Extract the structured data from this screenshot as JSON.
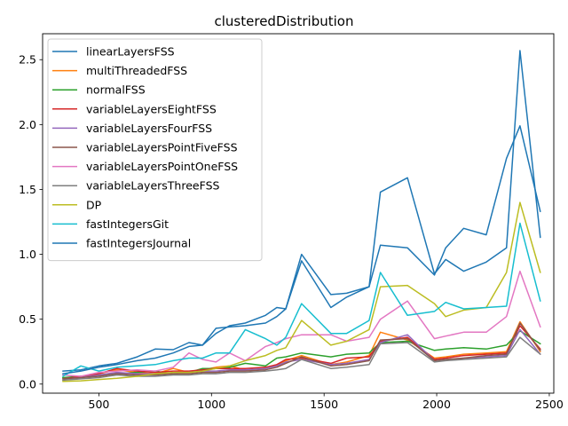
{
  "chart_data": {
    "type": "line",
    "title": "clusteredDistribution",
    "xlabel": "",
    "ylabel": "",
    "xlim": [
      250,
      2520
    ],
    "ylim": [
      -0.07,
      2.7
    ],
    "xticks": [
      500,
      1000,
      1500,
      2000,
      2500
    ],
    "xtick_labels": [
      "500",
      "1000",
      "1500",
      "2000",
      "2500"
    ],
    "yticks": [
      0.0,
      0.5,
      1.0,
      1.5,
      2.0,
      2.5
    ],
    "ytick_labels": [
      "0.0",
      "0.5",
      "1.0",
      "1.5",
      "2.0",
      "2.5"
    ],
    "grid": false,
    "legend": "upper-left",
    "x": [
      340,
      420,
      500,
      580,
      670,
      750,
      830,
      900,
      960,
      1020,
      1080,
      1150,
      1240,
      1290,
      1330,
      1400,
      1530,
      1600,
      1700,
      1750,
      1870,
      1990,
      2040,
      2120,
      2220,
      2310,
      2370,
      2460
    ],
    "series": [
      {
        "name": "linearLayersFSS",
        "color": "#1f77b4",
        "values": [
          0.1,
          0.11,
          0.14,
          0.16,
          0.21,
          0.27,
          0.265,
          0.32,
          0.3,
          0.43,
          0.44,
          0.45,
          0.47,
          0.52,
          0.58,
          1.0,
          0.69,
          0.7,
          0.75,
          1.48,
          1.59,
          0.85,
          0.96,
          0.87,
          0.94,
          1.05,
          2.57,
          1.13
        ]
      },
      {
        "name": "multiThreadedFSS",
        "color": "#ff7f0e",
        "values": [
          0.05,
          0.055,
          0.08,
          0.11,
          0.09,
          0.08,
          0.12,
          0.09,
          0.11,
          0.13,
          0.14,
          0.11,
          0.12,
          0.15,
          0.18,
          0.22,
          0.15,
          0.17,
          0.22,
          0.4,
          0.34,
          0.2,
          0.21,
          0.23,
          0.24,
          0.25,
          0.48,
          0.25
        ]
      },
      {
        "name": "normalFSS",
        "color": "#2ca02c",
        "values": [
          0.05,
          0.06,
          0.065,
          0.08,
          0.09,
          0.1,
          0.075,
          0.09,
          0.12,
          0.12,
          0.13,
          0.16,
          0.14,
          0.2,
          0.21,
          0.24,
          0.21,
          0.23,
          0.24,
          0.32,
          0.33,
          0.26,
          0.27,
          0.28,
          0.27,
          0.3,
          0.41,
          0.31
        ]
      },
      {
        "name": "variableLayersEightFSS",
        "color": "#d62728",
        "values": [
          0.04,
          0.06,
          0.08,
          0.12,
          0.1,
          0.09,
          0.1,
          0.1,
          0.11,
          0.12,
          0.12,
          0.12,
          0.13,
          0.15,
          0.19,
          0.2,
          0.16,
          0.2,
          0.21,
          0.33,
          0.36,
          0.19,
          0.2,
          0.22,
          0.23,
          0.24,
          0.45,
          0.27
        ]
      },
      {
        "name": "variableLayersFourFSS",
        "color": "#9467bd",
        "values": [
          0.04,
          0.05,
          0.07,
          0.09,
          0.08,
          0.08,
          0.08,
          0.09,
          0.1,
          0.1,
          0.11,
          0.11,
          0.12,
          0.14,
          0.17,
          0.19,
          0.15,
          0.16,
          0.19,
          0.32,
          0.38,
          0.18,
          0.19,
          0.2,
          0.21,
          0.22,
          0.42,
          0.23
        ]
      },
      {
        "name": "variableLayersPointFiveFSS",
        "color": "#8c564b",
        "values": [
          0.04,
          0.05,
          0.06,
          0.08,
          0.07,
          0.07,
          0.08,
          0.08,
          0.09,
          0.09,
          0.1,
          0.1,
          0.11,
          0.13,
          0.16,
          0.21,
          0.14,
          0.15,
          0.18,
          0.34,
          0.35,
          0.18,
          0.19,
          0.2,
          0.22,
          0.23,
          0.47,
          0.26
        ]
      },
      {
        "name": "variableLayersPointOneFSS",
        "color": "#e377c2",
        "values": [
          0.07,
          0.06,
          0.09,
          0.1,
          0.11,
          0.1,
          0.13,
          0.24,
          0.19,
          0.17,
          0.24,
          0.18,
          0.29,
          0.32,
          0.35,
          0.38,
          0.38,
          0.33,
          0.36,
          0.5,
          0.64,
          0.35,
          0.37,
          0.4,
          0.4,
          0.52,
          0.87,
          0.44
        ]
      },
      {
        "name": "variableLayersThreeFSS",
        "color": "#7f7f7f",
        "values": [
          0.03,
          0.04,
          0.05,
          0.07,
          0.06,
          0.06,
          0.07,
          0.07,
          0.08,
          0.08,
          0.09,
          0.09,
          0.1,
          0.11,
          0.12,
          0.19,
          0.12,
          0.13,
          0.15,
          0.31,
          0.32,
          0.17,
          0.18,
          0.19,
          0.2,
          0.21,
          0.36,
          0.23
        ]
      },
      {
        "name": "DP",
        "color": "#bcbd22",
        "values": [
          0.02,
          0.025,
          0.035,
          0.045,
          0.06,
          0.08,
          0.09,
          0.09,
          0.1,
          0.12,
          0.14,
          0.18,
          0.22,
          0.26,
          0.28,
          0.49,
          0.3,
          0.33,
          0.42,
          0.75,
          0.76,
          0.62,
          0.52,
          0.57,
          0.59,
          0.86,
          1.4,
          0.86
        ]
      },
      {
        "name": "fastIntegersGit",
        "color": "#17becf",
        "values": [
          0.06,
          0.14,
          0.1,
          0.13,
          0.14,
          0.15,
          0.18,
          0.2,
          0.2,
          0.24,
          0.24,
          0.42,
          0.35,
          0.3,
          0.36,
          0.62,
          0.39,
          0.39,
          0.49,
          0.86,
          0.53,
          0.56,
          0.63,
          0.58,
          0.59,
          0.6,
          1.24,
          0.64
        ]
      },
      {
        "name": "fastIntegersJournal",
        "color": "#1f77b4",
        "values": [
          0.08,
          0.1,
          0.13,
          0.15,
          0.18,
          0.2,
          0.24,
          0.29,
          0.3,
          0.39,
          0.45,
          0.47,
          0.53,
          0.59,
          0.58,
          0.95,
          0.59,
          0.67,
          0.75,
          1.07,
          1.05,
          0.84,
          1.05,
          1.2,
          1.15,
          1.74,
          1.99,
          1.33
        ]
      }
    ]
  }
}
